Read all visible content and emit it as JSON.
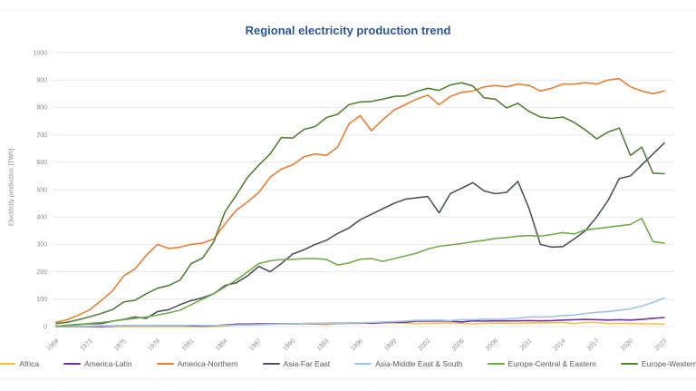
{
  "title": "Regional electricity production trend",
  "colors": {
    "title_accent": "#2F5597",
    "axis_label": "#8c8c8c",
    "legend_text": "#595959",
    "gridline": "#e8e8e8"
  },
  "chart_data": {
    "type": "line",
    "title": "Regional electricity production trend",
    "xlabel": "",
    "ylabel": "Electricity production [TWh]",
    "ylim": [
      0,
      1000
    ],
    "xlim": [
      1969,
      2023
    ],
    "y_ticks": [
      0,
      100,
      200,
      300,
      400,
      500,
      600,
      700,
      800,
      900,
      1000
    ],
    "x_ticks": [
      1969,
      1972,
      1975,
      1978,
      1981,
      1984,
      1987,
      1990,
      1993,
      1996,
      1999,
      2002,
      2005,
      2008,
      2011,
      2014,
      2017,
      2020,
      2023
    ],
    "grid": "horizontal",
    "legend_position": "bottom",
    "x": [
      1969,
      1970,
      1971,
      1972,
      1973,
      1974,
      1975,
      1976,
      1977,
      1978,
      1979,
      1980,
      1981,
      1982,
      1983,
      1984,
      1985,
      1986,
      1987,
      1988,
      1989,
      1990,
      1991,
      1992,
      1993,
      1994,
      1995,
      1996,
      1997,
      1998,
      1999,
      2000,
      2001,
      2002,
      2003,
      2004,
      2005,
      2006,
      2007,
      2008,
      2009,
      2010,
      2011,
      2012,
      2013,
      2014,
      2015,
      2016,
      2017,
      2018,
      2019,
      2020,
      2021,
      2022,
      2023
    ],
    "series": [
      {
        "name": "Africa",
        "color": "#F4C142",
        "values": [
          0,
          0,
          0,
          0,
          0,
          0,
          0,
          0,
          0,
          0,
          0,
          0,
          0,
          0,
          0,
          2,
          6,
          8,
          9,
          10,
          11,
          9,
          9,
          9,
          7,
          10,
          11,
          12,
          13,
          14,
          13,
          13,
          11,
          12,
          13,
          14,
          12,
          10,
          12,
          13,
          13,
          12,
          13,
          13,
          14,
          15,
          11,
          15,
          15,
          11,
          12,
          12,
          10,
          10,
          8
        ]
      },
      {
        "name": "America-Latin",
        "color": "#7030A0",
        "values": [
          0,
          0,
          0,
          0,
          0,
          2,
          3,
          3,
          3,
          3,
          3,
          3,
          3,
          2,
          3,
          6,
          9,
          9,
          10,
          10,
          10,
          10,
          11,
          11,
          12,
          12,
          13,
          14,
          12,
          15,
          16,
          16,
          20,
          20,
          21,
          20,
          17,
          21,
          20,
          21,
          21,
          21,
          22,
          21,
          22,
          24,
          25,
          26,
          25,
          24,
          25,
          24,
          26,
          30,
          33
        ]
      },
      {
        "name": "America-Northern",
        "color": "#ED7D31",
        "values": [
          16,
          25,
          42,
          62,
          95,
          130,
          185,
          210,
          260,
          300,
          285,
          290,
          300,
          305,
          320,
          375,
          425,
          455,
          490,
          545,
          575,
          590,
          620,
          630,
          625,
          655,
          740,
          770,
          715,
          755,
          790,
          810,
          830,
          845,
          810,
          840,
          855,
          860,
          875,
          880,
          875,
          885,
          880,
          860,
          870,
          885,
          885,
          890,
          885,
          900,
          905,
          875,
          860,
          850,
          860
        ]
      },
      {
        "name": "Asia-Far East",
        "color": "#4E5560",
        "values": [
          1,
          5,
          8,
          10,
          11,
          20,
          26,
          35,
          30,
          55,
          62,
          80,
          95,
          105,
          120,
          150,
          160,
          185,
          220,
          200,
          230,
          265,
          280,
          300,
          315,
          340,
          360,
          390,
          410,
          430,
          450,
          465,
          470,
          475,
          415,
          485,
          505,
          525,
          495,
          485,
          490,
          530,
          430,
          300,
          290,
          292,
          320,
          350,
          400,
          460,
          540,
          550,
          590,
          630,
          670
        ]
      },
      {
        "name": "Asia-Middle East & South",
        "color": "#9DC3E6",
        "values": [
          0,
          1,
          1,
          2,
          3,
          3,
          3,
          3,
          3,
          3,
          3,
          3,
          5,
          4,
          4,
          5,
          6,
          6,
          7,
          8,
          9,
          10,
          11,
          12,
          12,
          11,
          13,
          14,
          15,
          17,
          18,
          20,
          23,
          23,
          24,
          22,
          25,
          25,
          27,
          26,
          28,
          30,
          35,
          35,
          36,
          40,
          42,
          48,
          52,
          55,
          60,
          65,
          75,
          88,
          105
        ]
      },
      {
        "name": "Europe-Central & Eastern",
        "color": "#70AD47",
        "values": [
          2,
          4,
          7,
          12,
          15,
          20,
          25,
          30,
          35,
          42,
          50,
          60,
          80,
          100,
          120,
          145,
          170,
          200,
          230,
          240,
          245,
          245,
          248,
          248,
          245,
          225,
          232,
          246,
          248,
          238,
          248,
          258,
          268,
          283,
          293,
          298,
          303,
          310,
          315,
          322,
          325,
          330,
          332,
          330,
          336,
          343,
          338,
          353,
          358,
          363,
          368,
          373,
          395,
          310,
          305
        ]
      },
      {
        "name": "Europe-Western",
        "color": "#548235",
        "values": [
          11,
          16,
          25,
          36,
          48,
          62,
          90,
          96,
          120,
          140,
          150,
          170,
          230,
          250,
          310,
          420,
          480,
          545,
          590,
          630,
          690,
          688,
          720,
          730,
          763,
          775,
          810,
          820,
          822,
          830,
          840,
          842,
          858,
          870,
          862,
          882,
          890,
          878,
          835,
          830,
          798,
          815,
          785,
          765,
          760,
          765,
          745,
          718,
          685,
          710,
          725,
          625,
          655,
          560,
          558
        ]
      }
    ]
  }
}
